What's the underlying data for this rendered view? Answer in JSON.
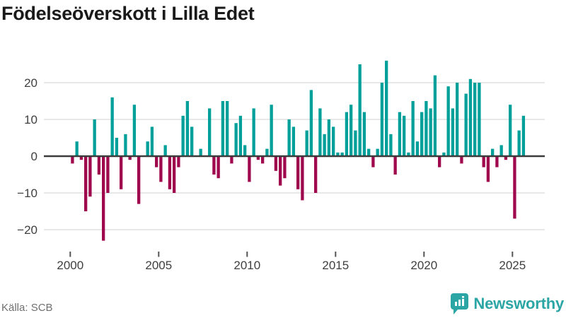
{
  "title": "Födelseöverskott i Lilla Edet",
  "source": "Källa: SCB",
  "branding": {
    "name": "Newsworthy",
    "icon": "newsworthy-badge-bar-chart-icon"
  },
  "colors": {
    "positive": "#00a09a",
    "negative": "#a0084e",
    "zero_line": "#3b3b3b",
    "grid": "#e8e8e8",
    "axis_text": "#3f3f3f",
    "tick_mark": "#555555",
    "title_text": "#1a1a1a",
    "source_text": "#6f6f6f",
    "brand": "#2ca5a5"
  },
  "chart_data": {
    "type": "bar",
    "title": "Födelseöverskott i Lilla Edet",
    "xlabel": "",
    "ylabel": "",
    "x_unit": "quarter",
    "range": "2000 Q1 – 2025 Q3",
    "ylim": [
      -25,
      27
    ],
    "grid": "horizontal",
    "y_ticks": [
      {
        "v": 20,
        "label": "20"
      },
      {
        "v": 10,
        "label": "10"
      },
      {
        "v": 0,
        "label": "0"
      },
      {
        "v": -10,
        "label": "−10"
      },
      {
        "v": -20,
        "label": "−20"
      }
    ],
    "x_tick_years": [
      {
        "year": 2000,
        "label": "2000"
      },
      {
        "year": 2005,
        "label": "2005"
      },
      {
        "year": 2010,
        "label": "2010"
      },
      {
        "year": 2015,
        "label": "2015"
      },
      {
        "year": 2020,
        "label": "2020"
      },
      {
        "year": 2025,
        "label": "2025"
      }
    ],
    "series": [
      {
        "year": 2000,
        "values": [
          -2,
          4,
          -1,
          -15
        ]
      },
      {
        "year": 2001,
        "values": [
          -11,
          10,
          -5,
          -23
        ]
      },
      {
        "year": 2002,
        "values": [
          -10,
          16,
          5,
          -9
        ]
      },
      {
        "year": 2003,
        "values": [
          6,
          -1,
          14,
          -13
        ]
      },
      {
        "year": 2004,
        "values": [
          0,
          4,
          8,
          -3
        ]
      },
      {
        "year": 2005,
        "values": [
          -7,
          3,
          -9,
          -10
        ]
      },
      {
        "year": 2006,
        "values": [
          -3,
          11,
          15,
          8
        ]
      },
      {
        "year": 2007,
        "values": [
          0,
          2,
          0,
          13
        ]
      },
      {
        "year": 2008,
        "values": [
          -5,
          -6,
          15,
          15
        ]
      },
      {
        "year": 2009,
        "values": [
          -2,
          9,
          11,
          3
        ]
      },
      {
        "year": 2010,
        "values": [
          -7,
          13,
          -1,
          -2
        ]
      },
      {
        "year": 2011,
        "values": [
          2,
          14,
          -4,
          -8
        ]
      },
      {
        "year": 2012,
        "values": [
          -6,
          10,
          8,
          -9
        ]
      },
      {
        "year": 2013,
        "values": [
          -12,
          7,
          18,
          -10
        ]
      },
      {
        "year": 2014,
        "values": [
          13,
          6,
          10,
          8
        ]
      },
      {
        "year": 2015,
        "values": [
          1,
          1,
          12,
          14
        ]
      },
      {
        "year": 2016,
        "values": [
          7,
          25,
          12,
          2
        ]
      },
      {
        "year": 2017,
        "values": [
          -3,
          2,
          20,
          26
        ]
      },
      {
        "year": 2018,
        "values": [
          6,
          -5,
          12,
          11
        ]
      },
      {
        "year": 2019,
        "values": [
          1,
          15,
          4,
          12
        ]
      },
      {
        "year": 2020,
        "values": [
          15,
          13,
          22,
          -3
        ]
      },
      {
        "year": 2021,
        "values": [
          1,
          19,
          13,
          20
        ]
      },
      {
        "year": 2022,
        "values": [
          -2,
          17,
          21,
          20
        ]
      },
      {
        "year": 2023,
        "values": [
          20,
          -3,
          -7,
          2
        ]
      },
      {
        "year": 2024,
        "values": [
          -3,
          3,
          -1,
          14
        ]
      },
      {
        "year": 2025,
        "values": [
          -17,
          7,
          11
        ]
      }
    ]
  }
}
